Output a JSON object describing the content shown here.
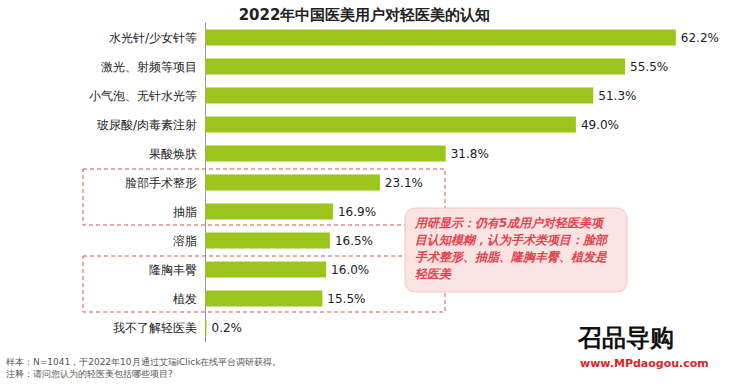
{
  "chart_data": {
    "type": "bar",
    "orientation": "horizontal",
    "title": "2022年中国医美用户对轻医美的认知",
    "categories": [
      "水光针/少女针等",
      "激光、射频等项目",
      "小气泡、无针水光等",
      "玻尿酸/肉毒素注射",
      "果酸焕肤",
      "脸部手术整形",
      "抽脂",
      "溶脂",
      "隆胸丰臀",
      "植发",
      "我不了解轻医美"
    ],
    "values": [
      62.2,
      55.5,
      51.3,
      49.0,
      31.8,
      23.1,
      16.9,
      16.5,
      16.0,
      15.5,
      0.2
    ],
    "value_labels": [
      "62.2%",
      "55.5%",
      "51.3%",
      "49.0%",
      "31.8%",
      "23.1%",
      "16.9%",
      "16.5%",
      "16.0%",
      "15.5%",
      "0.2%"
    ],
    "color": "#9bc41c",
    "xlim": [
      0,
      65
    ],
    "grid": false,
    "data_labels": true,
    "tick_labels": "y",
    "highlighted_groups": [
      [
        "脸部手术整形",
        "抽脂"
      ],
      [
        "隆胸丰臀",
        "植发"
      ]
    ],
    "annotation": "用研显示：仍有5成用户对轻医美项目认知模糊，认为手术类项目：脸部手术整形、抽脂、隆胸丰臀、植发是轻医美",
    "notes": [
      "样本：N=1041，于2022年10月通过艾瑞iClick在线平台调研获得。",
      "注释：请问您认为的轻医美包括哪些项目?"
    ],
    "watermark": [
      "召品导购",
      "www.MPdaogou.com"
    ]
  }
}
